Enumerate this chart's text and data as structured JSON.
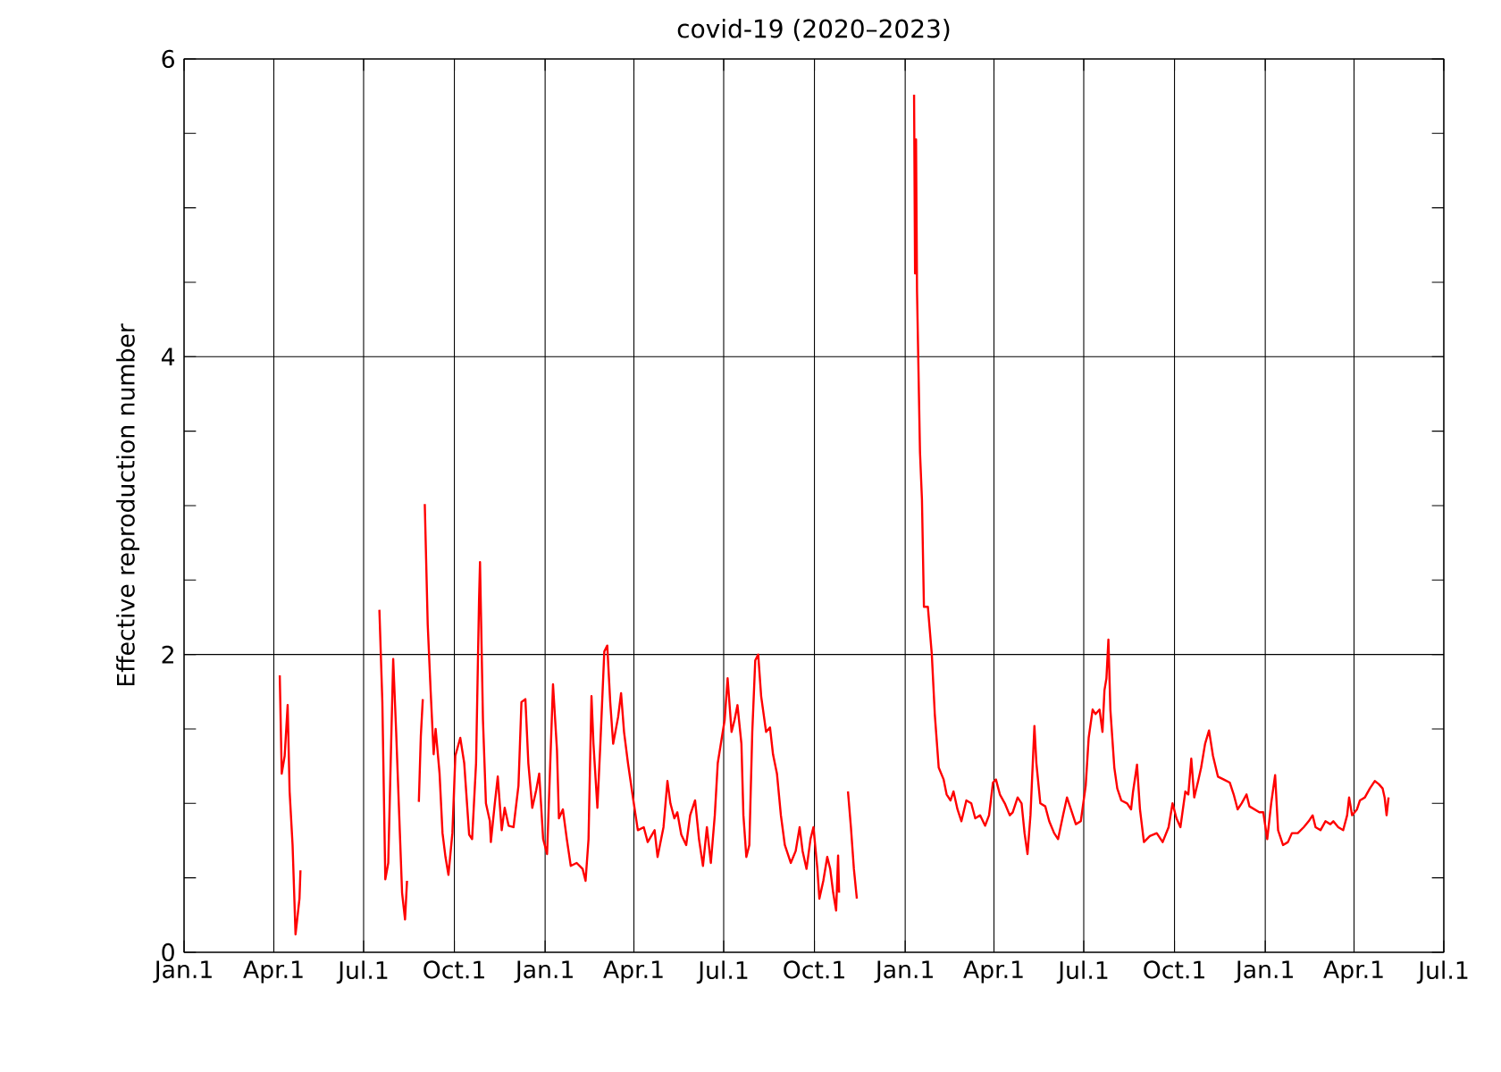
{
  "chart_data": {
    "type": "line",
    "title": "covid-19 (2020–2023)",
    "ylabel": "Effective reproduction number",
    "xlim": [
      "2020-01-01",
      "2023-07-01"
    ],
    "ylim": [
      0,
      6
    ],
    "xticks": [
      {
        "value": "2020-01-01",
        "label": "Jan.1"
      },
      {
        "value": "2020-04-01",
        "label": "Apr.1"
      },
      {
        "value": "2020-07-01",
        "label": "Jul.1"
      },
      {
        "value": "2020-10-01",
        "label": "Oct.1"
      },
      {
        "value": "2021-01-01",
        "label": "Jan.1"
      },
      {
        "value": "2021-04-01",
        "label": "Apr.1"
      },
      {
        "value": "2021-07-01",
        "label": "Jul.1"
      },
      {
        "value": "2021-10-01",
        "label": "Oct.1"
      },
      {
        "value": "2022-01-01",
        "label": "Jan.1"
      },
      {
        "value": "2022-04-01",
        "label": "Apr.1"
      },
      {
        "value": "2022-07-01",
        "label": "Jul.1"
      },
      {
        "value": "2022-10-01",
        "label": "Oct.1"
      },
      {
        "value": "2023-01-01",
        "label": "Jan.1"
      },
      {
        "value": "2023-04-01",
        "label": "Apr.1"
      },
      {
        "value": "2023-07-01",
        "label": "Jul.1"
      }
    ],
    "yticks": [
      0,
      {
        "value": 0.5,
        "label": null
      },
      {
        "value": 1,
        "label": null
      },
      {
        "value": 1.5,
        "label": null
      },
      2,
      {
        "value": 2.5,
        "label": null
      },
      {
        "value": 3,
        "label": null
      },
      {
        "value": 3.5,
        "label": null
      },
      4,
      {
        "value": 4.5,
        "label": null
      },
      {
        "value": 5,
        "label": null
      },
      {
        "value": 5.5,
        "label": null
      },
      6
    ],
    "grid": true,
    "marker": "none",
    "line_style": "solid",
    "series": [
      {
        "color": "#ff0000",
        "x": [
          "2020-04-07",
          "2020-04-09",
          "2020-04-12",
          "2020-04-15",
          "2020-04-17",
          "2020-04-20",
          "2020-04-23",
          "2020-04-27",
          "2020-04-28",
          "2020-05-10",
          "2020-07-17",
          "2020-07-20",
          "2020-07-23",
          "2020-07-26",
          "2020-07-31",
          "2020-08-03",
          "2020-08-07",
          "2020-08-09",
          "2020-08-12",
          "2020-08-14",
          "2020-08-20",
          "2020-08-26",
          "2020-08-28",
          "2020-08-30",
          "2020-08-31",
          "2020-09-01",
          "2020-09-04",
          "2020-09-07",
          "2020-09-10",
          "2020-09-12",
          "2020-09-16",
          "2020-09-19",
          "2020-09-22",
          "2020-09-25",
          "2020-09-29",
          "2020-10-02",
          "2020-10-07",
          "2020-10-11",
          "2020-10-16",
          "2020-10-19",
          "2020-10-23",
          "2020-10-26",
          "2020-10-27",
          "2020-10-30",
          "2020-11-02",
          "2020-11-06",
          "2020-11-07",
          "2020-11-11",
          "2020-11-14",
          "2020-11-18",
          "2020-11-21",
          "2020-11-25",
          "2020-11-30",
          "2020-12-05",
          "2020-12-08",
          "2020-12-12",
          "2020-12-15",
          "2020-12-19",
          "2020-12-23",
          "2020-12-26",
          "2020-12-30",
          "2021-01-03",
          "2021-01-09",
          "2021-01-13",
          "2021-01-15",
          "2021-01-19",
          "2021-01-23",
          "2021-01-27",
          "2021-02-02",
          "2021-02-08",
          "2021-02-11",
          "2021-02-14",
          "2021-02-17",
          "2021-02-19",
          "2021-02-23",
          "2021-02-26",
          "2021-03-02",
          "2021-03-05",
          "2021-03-08",
          "2021-03-11",
          "2021-03-16",
          "2021-03-19",
          "2021-03-22",
          "2021-03-26",
          "2021-03-31",
          "2021-04-05",
          "2021-04-11",
          "2021-04-15",
          "2021-04-22",
          "2021-04-25",
          "2021-05-01",
          "2021-05-05",
          "2021-05-08",
          "2021-05-12",
          "2021-05-15",
          "2021-05-19",
          "2021-05-24",
          "2021-05-28",
          "2021-06-02",
          "2021-06-06",
          "2021-06-10",
          "2021-06-14",
          "2021-06-18",
          "2021-06-22",
          "2021-06-25",
          "2021-07-02",
          "2021-07-05",
          "2021-07-09",
          "2021-07-12",
          "2021-07-15",
          "2021-07-19",
          "2021-07-21",
          "2021-07-24",
          "2021-07-27",
          "2021-07-30",
          "2021-08-02",
          "2021-08-05",
          "2021-08-08",
          "2021-08-13",
          "2021-08-17",
          "2021-08-20",
          "2021-08-24",
          "2021-08-28",
          "2021-09-01",
          "2021-09-07",
          "2021-09-12",
          "2021-09-16",
          "2021-09-19",
          "2021-09-23",
          "2021-09-27",
          "2021-09-30",
          "2021-10-04",
          "2021-10-06",
          "2021-10-10",
          "2021-10-14",
          "2021-10-17",
          "2021-10-20",
          "2021-10-23",
          "2021-10-25",
          "2021-10-26",
          "2021-10-30",
          "2021-11-04",
          "2021-11-07",
          "2021-11-10",
          "2021-11-13",
          "2021-12-01",
          "2022-01-10",
          "2022-01-11",
          "2022-01-12",
          "2022-01-13",
          "2022-01-16",
          "2022-01-18",
          "2022-01-20",
          "2022-01-24",
          "2022-01-28",
          "2022-01-31",
          "2022-02-04",
          "2022-02-09",
          "2022-02-12",
          "2022-02-16",
          "2022-02-19",
          "2022-02-23",
          "2022-02-27",
          "2022-03-04",
          "2022-03-09",
          "2022-03-13",
          "2022-03-18",
          "2022-03-23",
          "2022-03-27",
          "2022-03-31",
          "2022-04-03",
          "2022-04-07",
          "2022-04-12",
          "2022-04-17",
          "2022-04-20",
          "2022-04-25",
          "2022-04-29",
          "2022-05-02",
          "2022-05-05",
          "2022-05-08",
          "2022-05-12",
          "2022-05-14",
          "2022-05-18",
          "2022-05-23",
          "2022-05-27",
          "2022-06-01",
          "2022-06-05",
          "2022-06-10",
          "2022-06-14",
          "2022-06-18",
          "2022-06-23",
          "2022-06-28",
          "2022-07-03",
          "2022-07-06",
          "2022-07-10",
          "2022-07-13",
          "2022-07-17",
          "2022-07-20",
          "2022-07-22",
          "2022-07-24",
          "2022-07-26",
          "2022-07-28",
          "2022-08-01",
          "2022-08-04",
          "2022-08-08",
          "2022-08-14",
          "2022-08-18",
          "2022-08-20",
          "2022-08-24",
          "2022-08-27",
          "2022-08-31",
          "2022-09-06",
          "2022-09-13",
          "2022-09-19",
          "2022-09-25",
          "2022-09-29",
          "2022-10-03",
          "2022-10-07",
          "2022-10-12",
          "2022-10-15",
          "2022-10-18",
          "2022-10-21",
          "2022-10-25",
          "2022-10-28",
          "2022-11-01",
          "2022-11-05",
          "2022-11-09",
          "2022-11-14",
          "2022-11-20",
          "2022-11-26",
          "2022-11-30",
          "2022-12-04",
          "2022-12-08",
          "2022-12-13",
          "2022-12-16",
          "2022-12-21",
          "2022-12-26",
          "2022-12-30",
          "2023-01-03",
          "2023-01-07",
          "2023-01-11",
          "2023-01-14",
          "2023-01-19",
          "2023-01-24",
          "2023-01-28",
          "2023-02-03",
          "2023-02-09",
          "2023-02-14",
          "2023-02-18",
          "2023-02-21",
          "2023-02-26",
          "2023-03-03",
          "2023-03-08",
          "2023-03-11",
          "2023-03-16",
          "2023-03-21",
          "2023-03-25",
          "2023-03-27",
          "2023-03-30",
          "2023-04-04",
          "2023-04-07",
          "2023-04-12",
          "2023-04-17",
          "2023-04-22",
          "2023-04-26",
          "2023-04-30",
          "2023-05-02",
          "2023-05-04",
          "2023-05-06"
        ],
        "values": [
          1.86,
          1.2,
          1.32,
          1.66,
          1.08,
          0.72,
          0.12,
          0.36,
          0.55,
          null,
          2.3,
          1.68,
          0.49,
          0.6,
          1.97,
          1.48,
          0.76,
          0.4,
          0.22,
          0.48,
          null,
          1.01,
          1.45,
          1.7,
          null,
          3.01,
          2.2,
          1.75,
          1.33,
          1.5,
          1.2,
          0.8,
          0.64,
          0.52,
          0.8,
          1.32,
          1.44,
          1.27,
          0.79,
          0.76,
          1.27,
          2.36,
          2.62,
          1.56,
          1.0,
          0.88,
          0.74,
          1.0,
          1.18,
          0.82,
          0.97,
          0.85,
          0.84,
          1.12,
          1.68,
          1.7,
          1.27,
          0.97,
          1.09,
          1.2,
          0.76,
          0.66,
          1.8,
          1.36,
          0.9,
          0.96,
          0.76,
          0.58,
          0.6,
          0.56,
          0.48,
          0.76,
          1.72,
          1.4,
          0.97,
          1.4,
          2.02,
          2.06,
          1.68,
          1.4,
          1.58,
          1.74,
          1.48,
          1.27,
          1.04,
          0.82,
          0.84,
          0.74,
          0.82,
          0.64,
          0.84,
          1.15,
          1.0,
          0.9,
          0.94,
          0.79,
          0.72,
          0.92,
          1.02,
          0.76,
          0.58,
          0.84,
          0.6,
          0.92,
          1.27,
          1.56,
          1.84,
          1.48,
          1.56,
          1.66,
          1.4,
          0.92,
          0.64,
          0.72,
          1.48,
          1.96,
          2.0,
          1.72,
          1.48,
          1.51,
          1.33,
          1.2,
          0.92,
          0.72,
          0.6,
          0.68,
          0.84,
          0.68,
          0.56,
          0.76,
          0.84,
          0.56,
          0.36,
          0.48,
          0.64,
          0.56,
          0.4,
          0.28,
          0.65,
          0.4,
          null,
          1.08,
          0.84,
          0.56,
          0.36,
          null,
          5.76,
          4.56,
          5.46,
          4.44,
          3.36,
          3.04,
          2.32,
          2.32,
          2.0,
          1.6,
          1.24,
          1.16,
          1.06,
          1.02,
          1.08,
          0.96,
          0.88,
          1.02,
          1.0,
          0.9,
          0.92,
          0.85,
          0.92,
          1.14,
          1.16,
          1.06,
          1.0,
          0.92,
          0.94,
          1.04,
          1.0,
          0.8,
          0.66,
          0.92,
          1.52,
          1.27,
          1.0,
          0.98,
          0.88,
          0.8,
          0.76,
          0.92,
          1.04,
          0.96,
          0.86,
          0.88,
          1.12,
          1.44,
          1.63,
          1.6,
          1.63,
          1.48,
          1.76,
          1.84,
          2.1,
          1.63,
          1.24,
          1.1,
          1.02,
          1.0,
          0.96,
          1.08,
          1.26,
          0.96,
          0.74,
          0.78,
          0.8,
          0.74,
          0.84,
          1.0,
          0.9,
          0.84,
          1.08,
          1.06,
          1.3,
          1.04,
          1.15,
          1.24,
          1.4,
          1.49,
          1.32,
          1.18,
          1.16,
          1.14,
          1.06,
          0.96,
          1.0,
          1.06,
          0.98,
          0.96,
          0.94,
          0.94,
          0.76,
          1.0,
          1.19,
          0.82,
          0.72,
          0.74,
          0.8,
          0.8,
          0.84,
          0.88,
          0.92,
          0.84,
          0.82,
          0.88,
          0.86,
          0.88,
          0.84,
          0.82,
          0.92,
          1.04,
          0.92,
          0.96,
          1.02,
          1.04,
          1.1,
          1.15,
          1.13,
          1.1,
          1.04,
          0.92,
          1.04
        ]
      }
    ]
  }
}
